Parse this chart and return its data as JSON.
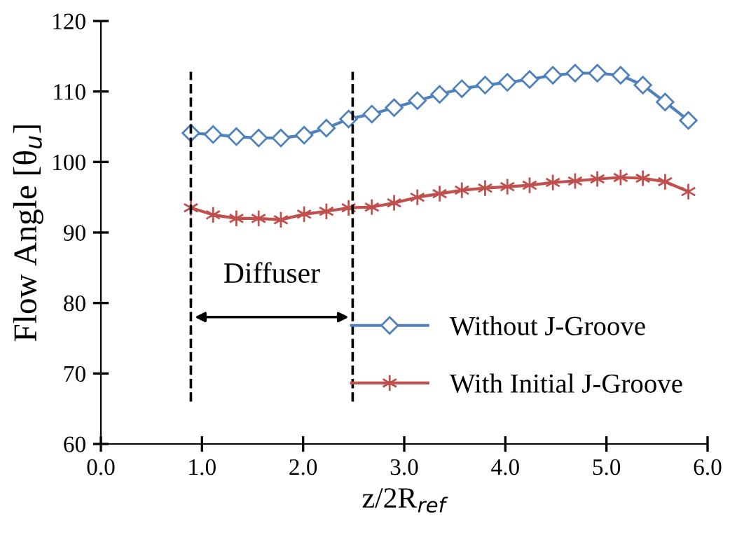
{
  "chart_data": {
    "type": "line",
    "xlabel": "z/2R$_{ref}$",
    "ylabel": "Flow Angle [θ$_{u}$]",
    "x": [
      0.89,
      1.11,
      1.34,
      1.56,
      1.78,
      2.01,
      2.23,
      2.45,
      2.68,
      2.9,
      3.13,
      3.35,
      3.57,
      3.8,
      4.02,
      4.24,
      4.47,
      4.69,
      4.91,
      5.14,
      5.36,
      5.58,
      5.81
    ],
    "series": [
      {
        "name": "Without J-Groove",
        "color": "#4f81bd",
        "marker": "diamond",
        "values": [
          104.1,
          103.9,
          103.6,
          103.4,
          103.4,
          103.8,
          104.8,
          106.1,
          106.8,
          107.7,
          108.7,
          109.6,
          110.4,
          110.9,
          111.3,
          111.7,
          112.3,
          112.6,
          112.6,
          112.3,
          110.9,
          108.5,
          105.9
        ]
      },
      {
        "name": "With Initial J-Groove",
        "color": "#c0504d",
        "marker": "cross",
        "values": [
          93.5,
          92.5,
          92.0,
          92.0,
          91.8,
          92.6,
          93.0,
          93.5,
          93.6,
          94.2,
          95.0,
          95.5,
          96.0,
          96.3,
          96.5,
          96.7,
          97.1,
          97.3,
          97.6,
          97.8,
          97.7,
          97.2,
          95.8
        ]
      }
    ],
    "ref_lines": [
      {
        "axis": "x",
        "value": 0.89,
        "color": "#000000",
        "line_style": "dashed"
      },
      {
        "axis": "x",
        "value": 2.49,
        "color": "#000000",
        "line_style": "dashed"
      }
    ],
    "annotations": [
      "Diffuser"
    ],
    "xlim": [
      0,
      6
    ],
    "ylim": [
      60,
      120
    ],
    "xticks": [
      {
        "value": 0,
        "label": "0.0"
      },
      {
        "value": 1,
        "label": "1.0"
      },
      {
        "value": 2,
        "label": "2.0"
      },
      {
        "value": 3,
        "label": "3.0"
      },
      {
        "value": 4,
        "label": "4.0"
      },
      {
        "value": 5,
        "label": "5.0"
      },
      {
        "value": 6,
        "label": "6.0"
      }
    ],
    "yticks": [
      60,
      70,
      80,
      90,
      100,
      110,
      120
    ],
    "grid": false,
    "legend": "bottom right",
    "line_style": "solid"
  }
}
